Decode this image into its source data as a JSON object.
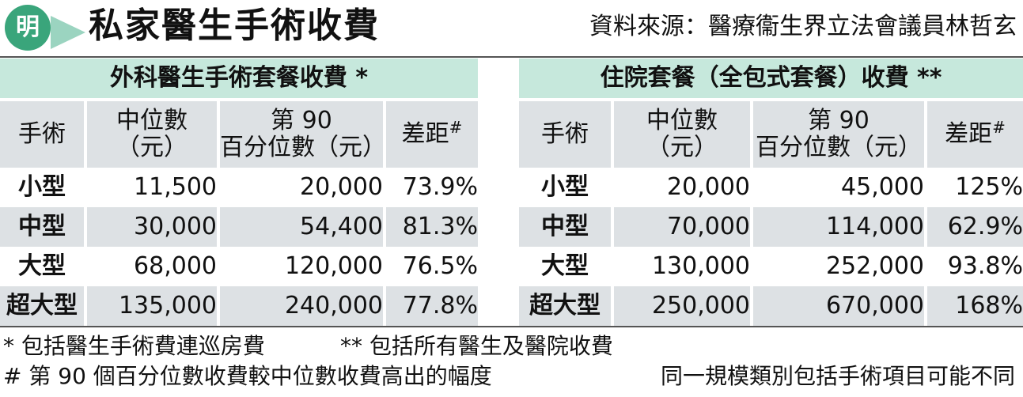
{
  "header": {
    "logo_char": "明",
    "title": "私家醫生手術收費",
    "source": "資料來源：醫療衞生界立法會議員林哲玄"
  },
  "colors": {
    "caption_bg": "#c6e8dc",
    "header_bg": "#dde1e4",
    "logo_green": "#3aa57b"
  },
  "tables": [
    {
      "caption": "外科醫生手術套餐收費 *",
      "headers": {
        "procedure": "手術",
        "median_1": "中位數",
        "median_2": "（元）",
        "p90_1": "第 90",
        "p90_2": "百分位數（元）",
        "diff": "差距",
        "diff_mark": "#"
      },
      "rows": [
        {
          "size": "小型",
          "median": "11,500",
          "p90": "20,000",
          "diff": "73.9%"
        },
        {
          "size": "中型",
          "median": "30,000",
          "p90": "54,400",
          "diff": "81.3%"
        },
        {
          "size": "大型",
          "median": "68,000",
          "p90": "120,000",
          "diff": "76.5%"
        },
        {
          "size": "超大型",
          "median": "135,000",
          "p90": "240,000",
          "diff": "77.8%"
        }
      ]
    },
    {
      "caption": "住院套餐（全包式套餐）收費 **",
      "headers": {
        "procedure": "手術",
        "median_1": "中位數",
        "median_2": "（元）",
        "p90_1": "第 90",
        "p90_2": "百分位數（元）",
        "diff": "差距",
        "diff_mark": "#"
      },
      "rows": [
        {
          "size": "小型",
          "median": "20,000",
          "p90": "45,000",
          "diff": "125%"
        },
        {
          "size": "中型",
          "median": "70,000",
          "p90": "114,000",
          "diff": "62.9%"
        },
        {
          "size": "大型",
          "median": "130,000",
          "p90": "252,000",
          "diff": "93.8%"
        },
        {
          "size": "超大型",
          "median": "250,000",
          "p90": "670,000",
          "diff": "168%"
        }
      ]
    }
  ],
  "footnotes": {
    "single_star": "* 包括醫生手術費連巡房費",
    "double_star": "** 包括所有醫生及醫院收費",
    "hash": "# 第 90 個百分位數收費較中位數收費高出的幅度",
    "note": "同一規模類別包括手術項目可能不同"
  }
}
